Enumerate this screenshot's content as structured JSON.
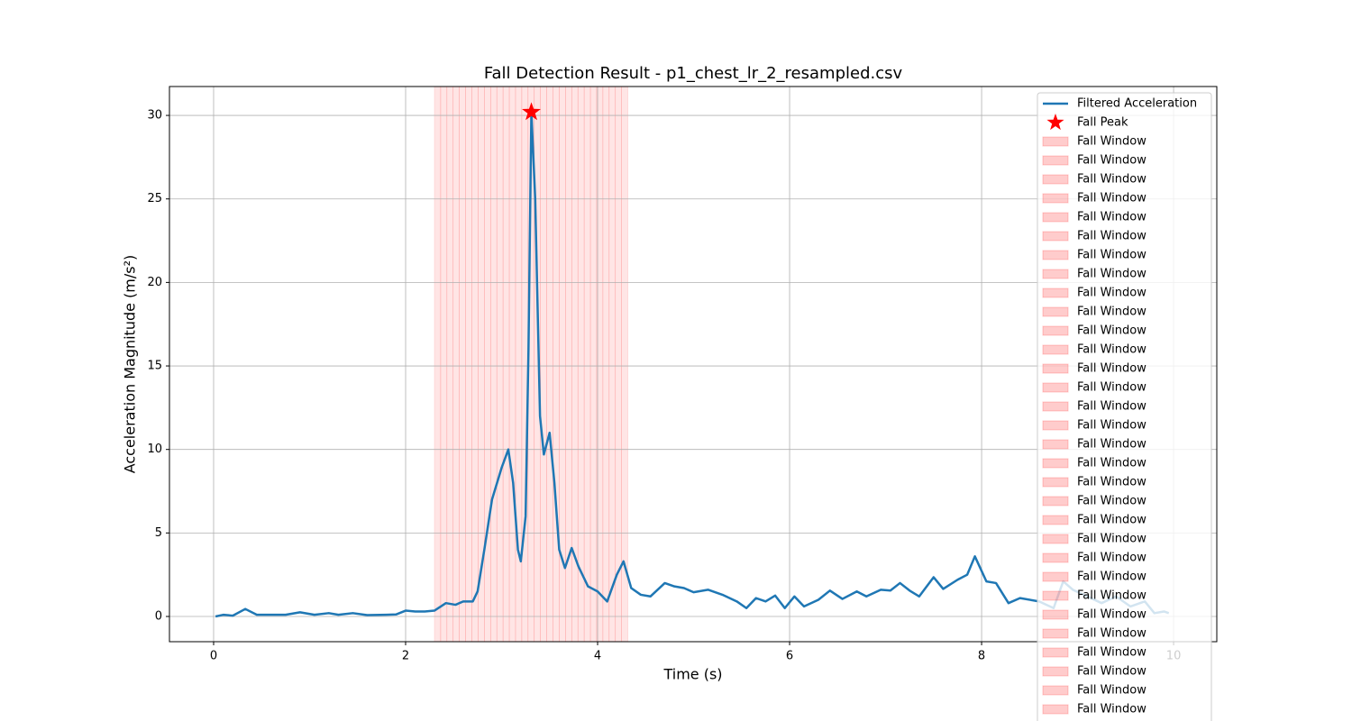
{
  "chart_data": {
    "type": "line",
    "title": "Fall Detection Result - p1_chest_lr_2_resampled.csv",
    "x_label": "Time (s)",
    "y_label": "Acceleration Magnitude (m/s²)",
    "xlim": [
      -0.46,
      10.45
    ],
    "ylim": [
      -1.51,
      31.73
    ],
    "xticks": [
      0,
      2,
      4,
      6,
      8,
      10
    ],
    "yticks": [
      0,
      5,
      10,
      15,
      20,
      25,
      30
    ],
    "grid": true,
    "legend": "upper right",
    "series": [
      {
        "name": "Filtered Acceleration",
        "color": "#1f77b4",
        "x": [
          0.02,
          0.1,
          0.2,
          0.33,
          0.45,
          0.6,
          0.75,
          0.9,
          1.05,
          1.2,
          1.3,
          1.45,
          1.6,
          1.8,
          1.9,
          2.0,
          2.1,
          2.2,
          2.3,
          2.42,
          2.52,
          2.6,
          2.7,
          2.75,
          2.82,
          2.9,
          3.0,
          3.07,
          3.12,
          3.17,
          3.2,
          3.25,
          3.28,
          3.31,
          3.35,
          3.4,
          3.44,
          3.5,
          3.55,
          3.6,
          3.66,
          3.73,
          3.8,
          3.9,
          4.0,
          4.1,
          4.2,
          4.27,
          4.35,
          4.45,
          4.55,
          4.7,
          4.8,
          4.9,
          5.0,
          5.15,
          5.3,
          5.45,
          5.55,
          5.65,
          5.75,
          5.85,
          5.95,
          6.05,
          6.15,
          6.3,
          6.42,
          6.55,
          6.7,
          6.8,
          6.95,
          7.05,
          7.15,
          7.25,
          7.35,
          7.5,
          7.6,
          7.75,
          7.85,
          7.93,
          8.05,
          8.15,
          8.28,
          8.4,
          8.6,
          8.75,
          8.85,
          8.95,
          9.1,
          9.25,
          9.4,
          9.55,
          9.7,
          9.8,
          9.9,
          9.95
        ],
        "values": [
          0,
          0.1,
          0.05,
          0.45,
          0.1,
          0.1,
          0.1,
          0.25,
          0.1,
          0.2,
          0.1,
          0.2,
          0.08,
          0.1,
          0.12,
          0.35,
          0.3,
          0.3,
          0.35,
          0.8,
          0.7,
          0.9,
          0.9,
          1.5,
          4,
          7,
          8.9,
          10,
          8,
          4,
          3.3,
          6,
          16,
          30.2,
          25,
          12,
          9.7,
          11,
          8,
          4,
          2.9,
          4.1,
          3,
          1.8,
          1.5,
          0.9,
          2.5,
          3.3,
          1.7,
          1.3,
          1.2,
          2.0,
          1.8,
          1.7,
          1.45,
          1.6,
          1.3,
          0.9,
          0.5,
          1.1,
          0.9,
          1.25,
          0.5,
          1.2,
          0.6,
          1.0,
          1.55,
          1.05,
          1.5,
          1.2,
          1.6,
          1.55,
          2.0,
          1.55,
          1.2,
          2.35,
          1.65,
          2.2,
          2.5,
          3.6,
          2.1,
          2.0,
          0.8,
          1.1,
          0.9,
          0.5,
          2.1,
          1.6,
          1.2,
          0.8,
          1.2,
          0.6,
          0.9,
          0.2,
          0.3,
          0.2
        ]
      }
    ],
    "peak": {
      "name": "Fall Peak",
      "color": "#ff0000",
      "x": 3.31,
      "value": 30.2
    },
    "window_color": "#ff0000",
    "windows": [
      {
        "name": "Fall Window",
        "start": 2.3,
        "end": 2.365
      },
      {
        "name": "Fall Window",
        "start": 2.365,
        "end": 2.43
      },
      {
        "name": "Fall Window",
        "start": 2.43,
        "end": 2.495
      },
      {
        "name": "Fall Window",
        "start": 2.495,
        "end": 2.56
      },
      {
        "name": "Fall Window",
        "start": 2.56,
        "end": 2.625
      },
      {
        "name": "Fall Window",
        "start": 2.625,
        "end": 2.69
      },
      {
        "name": "Fall Window",
        "start": 2.69,
        "end": 2.755
      },
      {
        "name": "Fall Window",
        "start": 2.755,
        "end": 2.82
      },
      {
        "name": "Fall Window",
        "start": 2.82,
        "end": 2.885
      },
      {
        "name": "Fall Window",
        "start": 2.885,
        "end": 2.95
      },
      {
        "name": "Fall Window",
        "start": 2.95,
        "end": 3.015
      },
      {
        "name": "Fall Window",
        "start": 3.015,
        "end": 3.08
      },
      {
        "name": "Fall Window",
        "start": 3.08,
        "end": 3.145
      },
      {
        "name": "Fall Window",
        "start": 3.145,
        "end": 3.21
      },
      {
        "name": "Fall Window",
        "start": 3.21,
        "end": 3.275
      },
      {
        "name": "Fall Window",
        "start": 3.275,
        "end": 3.34
      },
      {
        "name": "Fall Window",
        "start": 3.34,
        "end": 3.405
      },
      {
        "name": "Fall Window",
        "start": 3.405,
        "end": 3.47
      },
      {
        "name": "Fall Window",
        "start": 3.47,
        "end": 3.535
      },
      {
        "name": "Fall Window",
        "start": 3.535,
        "end": 3.6
      },
      {
        "name": "Fall Window",
        "start": 3.6,
        "end": 3.665
      },
      {
        "name": "Fall Window",
        "start": 3.665,
        "end": 3.73
      },
      {
        "name": "Fall Window",
        "start": 3.73,
        "end": 3.795
      },
      {
        "name": "Fall Window",
        "start": 3.795,
        "end": 3.86
      },
      {
        "name": "Fall Window",
        "start": 3.86,
        "end": 3.925
      },
      {
        "name": "Fall Window",
        "start": 3.925,
        "end": 3.99
      },
      {
        "name": "Fall Window",
        "start": 3.99,
        "end": 4.055
      },
      {
        "name": "Fall Window",
        "start": 4.055,
        "end": 4.12
      },
      {
        "name": "Fall Window",
        "start": 4.12,
        "end": 4.185
      },
      {
        "name": "Fall Window",
        "start": 4.185,
        "end": 4.25
      },
      {
        "name": "Fall Window",
        "start": 4.25,
        "end": 4.315
      }
    ]
  }
}
